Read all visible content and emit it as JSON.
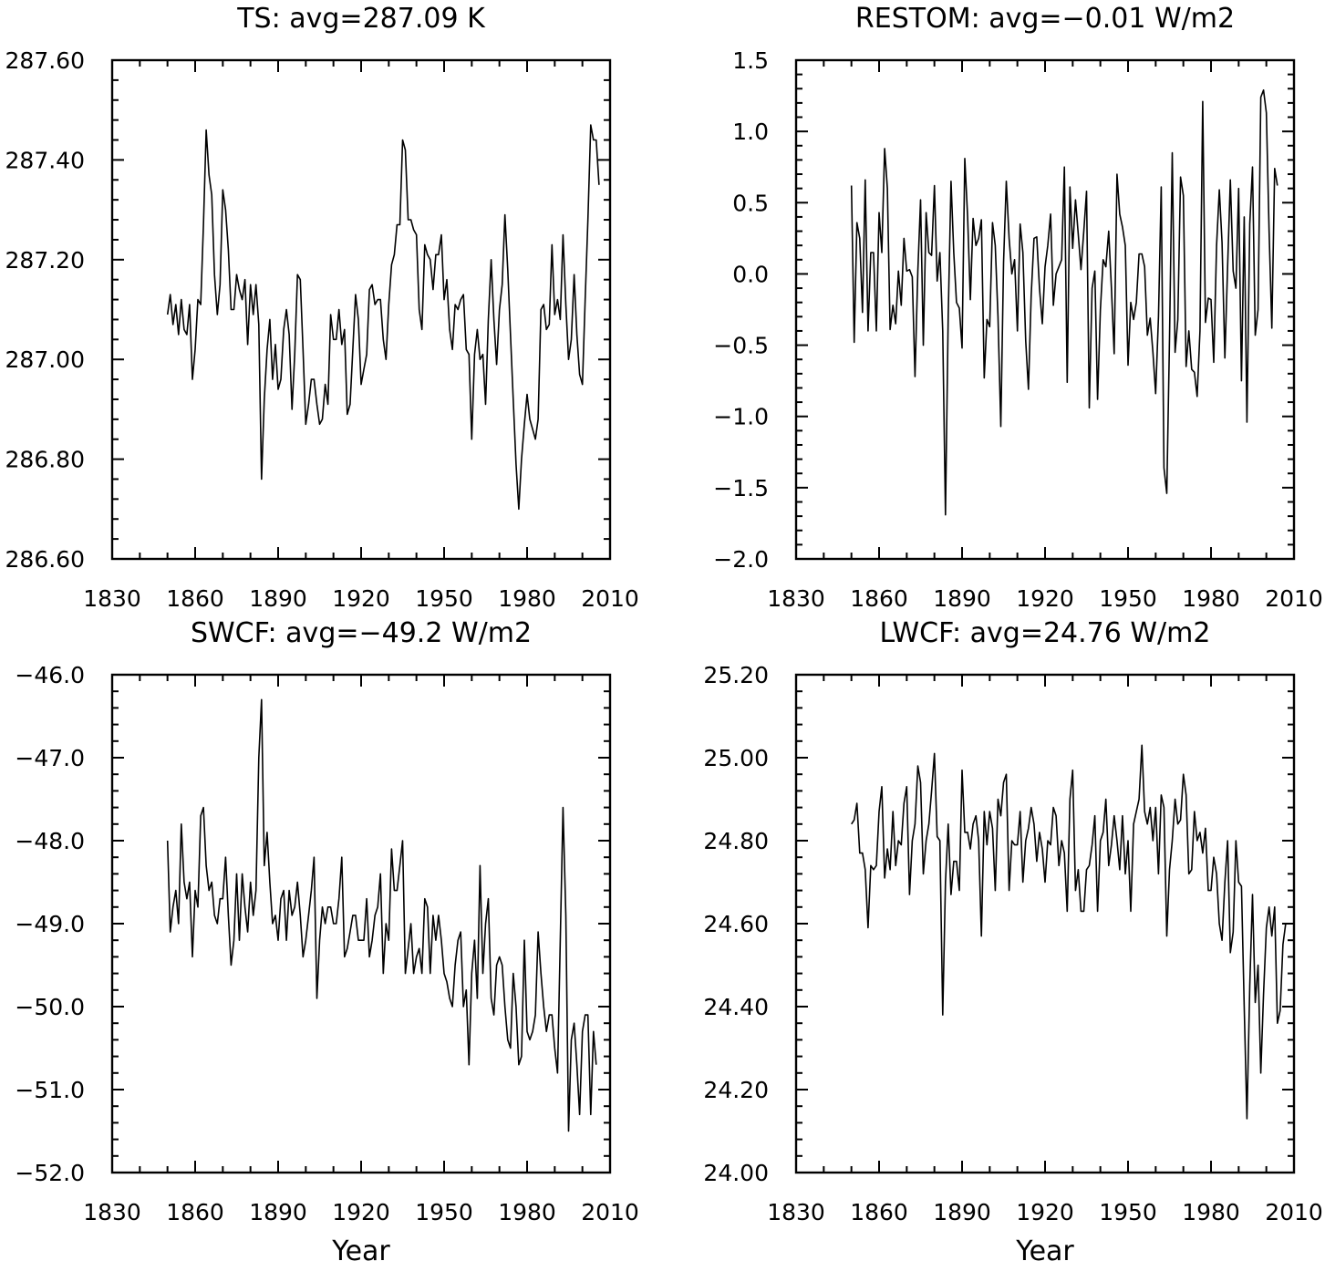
{
  "chart_data": [
    {
      "type": "line",
      "title": "TS: avg=287.09 K",
      "xlabel": "",
      "ylabel": "",
      "xlim": [
        1830,
        2010
      ],
      "ylim": [
        286.6,
        287.6
      ],
      "xticks": [
        "1830",
        "1860",
        "1890",
        "1920",
        "1950",
        "1980",
        "2010"
      ],
      "yticks": [
        "286.60",
        "286.80",
        "287.00",
        "287.20",
        "287.40",
        "287.60"
      ],
      "grid": false,
      "x_start": 1850,
      "series": [
        {
          "values": [
            287.09,
            287.13,
            287.07,
            287.11,
            287.05,
            287.12,
            287.06,
            287.05,
            287.11,
            286.96,
            287.02,
            287.12,
            287.11,
            287.27,
            287.46,
            287.37,
            287.33,
            287.17,
            287.09,
            287.15,
            287.34,
            287.3,
            287.22,
            287.1,
            287.1,
            287.17,
            287.14,
            287.12,
            287.16,
            287.03,
            287.15,
            287.09,
            287.15,
            287.07,
            286.76,
            286.92,
            287.02,
            287.08,
            286.96,
            287.03,
            286.94,
            286.96,
            287.06,
            287.1,
            287.05,
            286.9,
            287.01,
            287.17,
            287.16,
            287.02,
            286.87,
            286.91,
            286.96,
            286.96,
            286.91,
            286.87,
            286.88,
            286.95,
            286.91,
            287.09,
            287.04,
            287.04,
            287.1,
            287.03,
            287.06,
            286.89,
            286.91,
            287.02,
            287.13,
            287.08,
            286.95,
            286.98,
            287.01,
            287.14,
            287.15,
            287.11,
            287.12,
            287.12,
            287.04,
            287.0,
            287.11,
            287.19,
            287.21,
            287.27,
            287.27,
            287.44,
            287.42,
            287.28,
            287.28,
            287.26,
            287.25,
            287.1,
            287.06,
            287.23,
            287.21,
            287.2,
            287.14,
            287.21,
            287.21,
            287.25,
            287.12,
            287.16,
            287.06,
            287.02,
            287.11,
            287.1,
            287.12,
            287.13,
            287.02,
            287.01,
            286.84,
            287.01,
            287.06,
            287.0,
            287.01,
            286.91,
            287.08,
            287.2,
            287.08,
            286.99,
            287.1,
            287.15,
            287.29,
            287.18,
            287.05,
            286.92,
            286.79,
            286.7,
            286.8,
            286.87,
            286.93,
            286.88,
            286.86,
            286.84,
            286.88,
            287.1,
            287.11,
            287.06,
            287.07,
            287.23,
            287.09,
            287.12,
            287.08,
            287.25,
            287.11,
            287.0,
            287.04,
            287.17,
            287.05,
            286.97,
            286.95,
            287.12,
            287.28,
            287.47,
            287.44,
            287.44,
            287.35
          ]
        }
      ]
    },
    {
      "type": "line",
      "title": "RESTOM: avg=−0.01 W/m2",
      "xlabel": "",
      "ylabel": "",
      "xlim": [
        1830,
        2010
      ],
      "ylim": [
        -2.0,
        1.5
      ],
      "xticks": [
        "1830",
        "1860",
        "1890",
        "1920",
        "1950",
        "1980",
        "2010"
      ],
      "yticks": [
        "−2.0",
        "−1.5",
        "−1.0",
        "−0.5",
        "0.0",
        "0.5",
        "1.0",
        "1.5"
      ],
      "grid": false,
      "x_start": 1850,
      "series": [
        {
          "values": [
            0.62,
            -0.48,
            0.36,
            0.25,
            -0.27,
            0.66,
            -0.4,
            0.15,
            0.15,
            -0.4,
            0.43,
            0.15,
            0.88,
            0.6,
            -0.39,
            -0.22,
            -0.35,
            0.02,
            -0.22,
            0.25,
            0.02,
            0.03,
            -0.02,
            -0.72,
            0.02,
            0.52,
            -0.5,
            0.43,
            0.15,
            0.13,
            0.62,
            -0.05,
            0.15,
            -0.4,
            -1.69,
            -0.3,
            0.65,
            0.15,
            -0.2,
            -0.24,
            -0.52,
            0.81,
            0.4,
            -0.18,
            0.39,
            0.2,
            0.25,
            0.38,
            -0.73,
            -0.32,
            -0.37,
            0.36,
            0.2,
            -0.3,
            -1.07,
            0.08,
            0.65,
            0.25,
            0.0,
            0.1,
            -0.4,
            0.35,
            0.15,
            -0.47,
            -0.81,
            -0.15,
            0.25,
            0.26,
            -0.1,
            -0.35,
            0.05,
            0.2,
            0.42,
            -0.22,
            0.0,
            0.05,
            0.1,
            0.75,
            -0.76,
            0.61,
            0.18,
            0.52,
            0.28,
            0.03,
            0.3,
            0.58,
            -0.94,
            -0.1,
            0.02,
            -0.88,
            -0.25,
            0.1,
            0.05,
            0.3,
            -0.1,
            -0.56,
            0.7,
            0.42,
            0.33,
            0.2,
            -0.64,
            -0.2,
            -0.32,
            -0.2,
            0.14,
            0.14,
            0.05,
            -0.43,
            -0.31,
            -0.55,
            -0.84,
            -0.3,
            0.61,
            -1.36,
            -1.54,
            -0.45,
            0.85,
            -0.55,
            -0.32,
            0.68,
            0.55,
            -0.65,
            -0.4,
            -0.67,
            -0.69,
            -0.86,
            -0.4,
            1.21,
            -0.34,
            -0.17,
            -0.18,
            -0.62,
            0.2,
            0.59,
            0.22,
            -0.59,
            0.05,
            0.66,
            0.02,
            -0.1,
            0.6,
            -0.75,
            0.4,
            -1.04,
            0.35,
            0.75,
            -0.43,
            -0.25,
            1.24,
            1.29,
            1.13,
            0.3,
            -0.38,
            0.74,
            0.62
          ]
        }
      ]
    },
    {
      "type": "line",
      "title": "SWCF: avg=−49.2 W/m2",
      "xlabel": "Year",
      "ylabel": "",
      "xlim": [
        1830,
        2010
      ],
      "ylim": [
        -52.0,
        -46.0
      ],
      "xticks": [
        "1830",
        "1860",
        "1890",
        "1920",
        "1950",
        "1980",
        "2010"
      ],
      "yticks": [
        "−52.0",
        "−51.0",
        "−50.0",
        "−49.0",
        "−48.0",
        "−47.0",
        "−46.0"
      ],
      "grid": false,
      "x_start": 1850,
      "series": [
        {
          "values": [
            -48.0,
            -49.1,
            -48.8,
            -48.6,
            -49.0,
            -47.8,
            -48.5,
            -48.7,
            -48.5,
            -49.4,
            -48.6,
            -48.8,
            -47.7,
            -47.6,
            -48.3,
            -48.6,
            -48.5,
            -48.9,
            -49.0,
            -48.7,
            -48.7,
            -48.2,
            -48.9,
            -49.5,
            -49.2,
            -48.4,
            -49.2,
            -48.4,
            -48.8,
            -49.1,
            -48.5,
            -48.9,
            -48.6,
            -47.0,
            -46.3,
            -48.3,
            -47.9,
            -48.5,
            -49.0,
            -48.9,
            -49.2,
            -48.7,
            -48.6,
            -49.2,
            -48.6,
            -48.9,
            -48.8,
            -48.5,
            -48.9,
            -49.4,
            -49.2,
            -48.9,
            -48.6,
            -48.2,
            -49.9,
            -49.2,
            -48.8,
            -49.0,
            -48.8,
            -48.8,
            -49.0,
            -49.0,
            -48.7,
            -48.2,
            -49.4,
            -49.3,
            -49.1,
            -48.9,
            -48.9,
            -49.2,
            -49.2,
            -49.2,
            -48.7,
            -49.4,
            -49.2,
            -48.9,
            -48.8,
            -48.4,
            -49.6,
            -49.0,
            -49.2,
            -48.1,
            -48.6,
            -48.6,
            -48.3,
            -48.0,
            -49.6,
            -49.3,
            -49.0,
            -49.6,
            -49.4,
            -49.3,
            -49.6,
            -48.7,
            -48.8,
            -49.6,
            -48.9,
            -49.2,
            -48.9,
            -49.2,
            -49.6,
            -49.7,
            -49.9,
            -50.0,
            -49.5,
            -49.2,
            -49.1,
            -50.0,
            -49.8,
            -50.7,
            -49.6,
            -49.2,
            -49.9,
            -48.3,
            -49.6,
            -49.0,
            -48.7,
            -49.9,
            -50.1,
            -49.5,
            -49.4,
            -49.5,
            -50.0,
            -50.4,
            -50.5,
            -49.6,
            -50.0,
            -50.7,
            -50.6,
            -49.2,
            -50.3,
            -50.4,
            -50.3,
            -50.1,
            -49.1,
            -49.6,
            -50.0,
            -50.3,
            -50.1,
            -50.1,
            -50.5,
            -50.8,
            -49.2,
            -47.6,
            -48.9,
            -51.5,
            -50.4,
            -50.2,
            -50.7,
            -51.3,
            -50.3,
            -50.1,
            -50.1,
            -51.3,
            -50.3,
            -50.7
          ]
        }
      ]
    },
    {
      "type": "line",
      "title": "LWCF: avg=24.76 W/m2",
      "xlabel": "Year",
      "ylabel": "",
      "xlim": [
        1830,
        2010
      ],
      "ylim": [
        24.0,
        25.2
      ],
      "xticks": [
        "1830",
        "1860",
        "1890",
        "1920",
        "1950",
        "1980",
        "2010"
      ],
      "yticks": [
        "24.00",
        "24.20",
        "24.40",
        "24.60",
        "24.80",
        "25.00",
        "25.20"
      ],
      "grid": false,
      "x_start": 1850,
      "series": [
        {
          "values": [
            24.84,
            24.85,
            24.89,
            24.77,
            24.77,
            24.73,
            24.59,
            24.74,
            24.73,
            24.74,
            24.87,
            24.93,
            24.71,
            24.78,
            24.73,
            24.87,
            24.74,
            24.8,
            24.79,
            24.89,
            24.93,
            24.67,
            24.8,
            24.84,
            24.98,
            24.94,
            24.72,
            24.8,
            24.84,
            24.92,
            25.01,
            24.81,
            24.8,
            24.38,
            24.7,
            24.84,
            24.67,
            24.75,
            24.75,
            24.68,
            24.97,
            24.82,
            24.82,
            24.78,
            24.84,
            24.86,
            24.8,
            24.57,
            24.87,
            24.79,
            24.87,
            24.83,
            24.68,
            24.9,
            24.86,
            24.94,
            24.96,
            24.68,
            24.8,
            24.79,
            24.79,
            24.87,
            24.7,
            24.8,
            24.83,
            24.88,
            24.84,
            24.75,
            24.82,
            24.78,
            24.7,
            24.8,
            24.79,
            24.88,
            24.86,
            24.74,
            24.8,
            24.77,
            24.63,
            24.9,
            24.97,
            24.68,
            24.73,
            24.63,
            24.63,
            24.73,
            24.74,
            24.79,
            24.86,
            24.63,
            24.8,
            24.82,
            24.9,
            24.74,
            24.79,
            24.86,
            24.8,
            24.73,
            24.86,
            24.72,
            24.8,
            24.63,
            24.84,
            24.87,
            24.9,
            25.03,
            24.87,
            24.84,
            24.88,
            24.8,
            24.88,
            24.72,
            24.91,
            24.88,
            24.57,
            24.73,
            24.8,
            24.9,
            24.84,
            24.85,
            24.96,
            24.91,
            24.72,
            24.73,
            24.87,
            24.8,
            24.82,
            24.77,
            24.83,
            24.68,
            24.68,
            24.76,
            24.72,
            24.6,
            24.56,
            24.7,
            24.8,
            24.53,
            24.58,
            24.8,
            24.7,
            24.69,
            24.4,
            24.13,
            24.45,
            24.67,
            24.41,
            24.5,
            24.24,
            24.43,
            24.59,
            24.64,
            24.57,
            24.64,
            24.36,
            24.39,
            24.55,
            24.6
          ]
        }
      ]
    }
  ]
}
